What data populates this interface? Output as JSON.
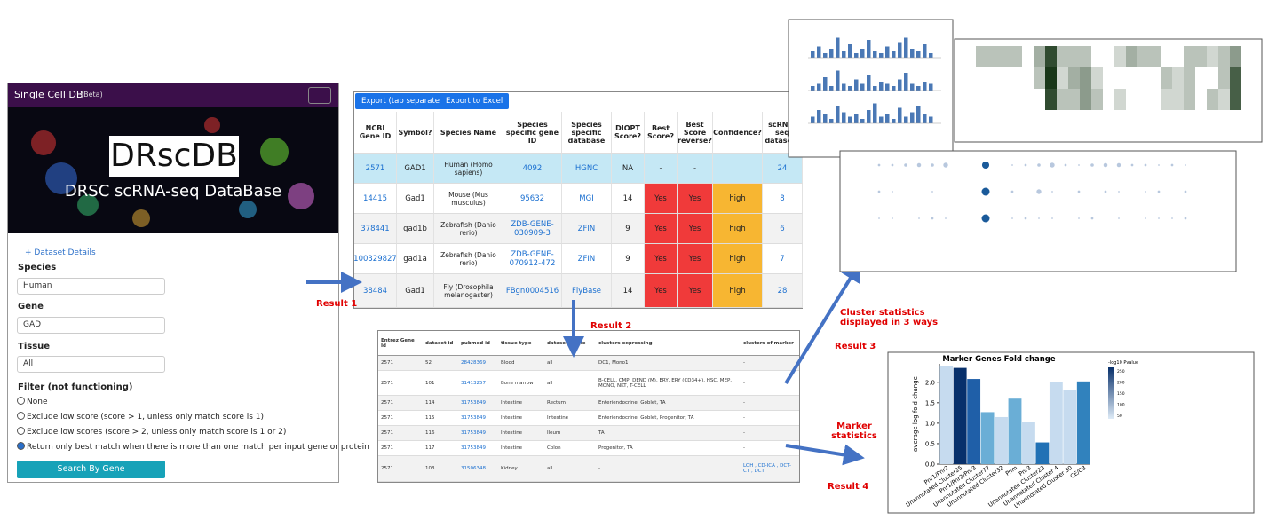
{
  "app": {
    "brand": "Single Cell DB",
    "beta": "(Beta)",
    "logo": "DRscDB",
    "subtitle": "DRSC scRNA-seq DataBase",
    "dataset_details": "+ Dataset Details",
    "species_label": "Species",
    "species": "Human",
    "gene_label": "Gene",
    "gene": "GAD",
    "tissue_label": "Tissue",
    "tissue": "All",
    "filter_label": "Filter (not functioning)",
    "filters": [
      "None",
      "Exclude low score (score > 1, unless only match score is 1)",
      "Exclude low scores (score > 2, unless only match score is 1 or 2)",
      "Return only best match when there is more than one match per input gene or protein"
    ],
    "button": "Search By Gene"
  },
  "orthologs": {
    "buttons": [
      "Export (tab separated)",
      "Export to Excel"
    ],
    "columns": [
      "NCBI Gene ID",
      "Symbol?",
      "Species Name",
      "Species specific gene ID",
      "Species specific database",
      "DIOPT Score?",
      "Best Score?",
      "Best Score reverse?",
      "Confidence?",
      "scRNA-seq datasets"
    ],
    "rows": [
      [
        "2571",
        "GAD1",
        "Human (Homo sapiens)",
        "4092",
        "HGNC",
        "NA",
        "-",
        "-",
        null,
        24
      ],
      [
        "14415",
        "Gad1",
        "Mouse (Mus musculus)",
        "95632",
        "MGI",
        14,
        "Yes",
        "Yes",
        "high",
        8
      ],
      [
        "378441",
        "gad1b",
        "Zebrafish (Danio rerio)",
        "ZDB-GENE-030909-3",
        "ZFIN",
        9,
        "Yes",
        "Yes",
        "high",
        6
      ],
      [
        "100329827",
        "gad1a",
        "Zebrafish (Danio rerio)",
        "ZDB-GENE-070912-472",
        "ZFIN",
        9,
        "Yes",
        "Yes",
        "high",
        7
      ],
      [
        "38484",
        "Gad1",
        "Fly (Drosophila melanogaster)",
        "FBgn0004516",
        "FlyBase",
        14,
        "Yes",
        "Yes",
        "high",
        28
      ]
    ]
  },
  "datasets": {
    "columns": [
      "Entrez Gene Id",
      "dataset id",
      "pubmed id",
      "tissue type",
      "dataset_name",
      "clusters expressing",
      "clusters of marker"
    ],
    "rows": [
      [
        "2571",
        52,
        "28428369",
        "Blood",
        "all",
        "DC1, Mono1",
        "-"
      ],
      [
        "2571",
        101,
        "31413257",
        "Bone marrow",
        "all",
        "B-CELL, CMP, DEND (M), ERY, ERY (CD34+), HSC, MEP, MONO, NKT, T-CELL",
        "-"
      ],
      [
        "2571",
        114,
        "31753849",
        "Intestine",
        "Rectum",
        "Enteriendocrine, Goblet, TA",
        "-"
      ],
      [
        "2571",
        115,
        "31753849",
        "Intestine",
        "Intestine",
        "Enteriendocrine, Goblet, Progenitor, TA",
        "-"
      ],
      [
        "2571",
        116,
        "31753849",
        "Intestine",
        "Ileum",
        "TA",
        "-"
      ],
      [
        "2571",
        117,
        "31753849",
        "Intestine",
        "Colon",
        "Progenitor, TA",
        "-"
      ],
      [
        "2571",
        103,
        "31506348",
        "Kidney",
        "all",
        "-",
        "LOH , CD-ICA , DCT-CT , DCT"
      ]
    ]
  },
  "annotations": {
    "result1": "Result 1",
    "result2": "Result 2",
    "cluster": "Cluster statistics displayed in 3 ways",
    "result3": "Result 3",
    "marker": "Marker statistics",
    "result4": "Result 4"
  },
  "chart_data": {
    "type": "bar",
    "title": "Marker Genes Fold change",
    "ylabel": "average log fold change",
    "categories": [
      "Pnr1/Pnr2",
      "Unannotated Cluster25",
      "Pnr1/Pnr2/Pnr3",
      "Unannotated Cluster77",
      "Unannotated Cluster32",
      "Pnm",
      "Pnr3",
      "Unannotated Cluster23",
      "Unannotated Cluster 4",
      "Unannotated Cluster 30",
      "CE/C3"
    ],
    "values": [
      2.4,
      2.35,
      2.08,
      1.27,
      1.15,
      1.6,
      1.03,
      0.53,
      2.0,
      1.82,
      2.02
    ],
    "colors": [
      "#c6dbef",
      "#08306b",
      "#1f5fa8",
      "#6aaed6",
      "#c6dbef",
      "#6aaed6",
      "#c6dbef",
      "#2171b5",
      "#c6dbef",
      "#c6dbef",
      "#3182bd"
    ],
    "ylim": [
      0,
      2.45
    ],
    "yticks": [
      {
        "value": 0,
        "label": "0.0"
      },
      0.5,
      {
        "value": 1,
        "label": "1.0"
      },
      1.5,
      {
        "value": 2,
        "label": "2.0"
      }
    ],
    "colorbar": {
      "label": "-log10 Pvalue",
      "ticks": [
        50,
        100,
        150,
        200,
        250
      ]
    }
  },
  "thumbnails": {
    "bars": [
      [
        0.3,
        0.5,
        0.2,
        0.4,
        0.9,
        0.3,
        0.6,
        0.2,
        0.4,
        0.8,
        0.3,
        0.2,
        0.5,
        0.3,
        0.7,
        0.9,
        0.4,
        0.3,
        0.6,
        0.2
      ],
      [
        0.2,
        0.3,
        0.6,
        0.2,
        0.9,
        0.3,
        0.2,
        0.5,
        0.3,
        0.7,
        0.2,
        0.4,
        0.3,
        0.2,
        0.5,
        0.8,
        0.3,
        0.2,
        0.4,
        0.3
      ],
      [
        0.3,
        0.6,
        0.4,
        0.2,
        0.8,
        0.5,
        0.3,
        0.4,
        0.2,
        0.6,
        0.9,
        0.3,
        0.4,
        0.2,
        0.7,
        0.3,
        0.5,
        0.8,
        0.4,
        0.3
      ]
    ],
    "heatmap": [
      [
        0,
        0.3,
        0.3,
        0.3,
        0.3,
        0,
        0.4,
        0.9,
        0.3,
        0.3,
        0.3,
        0,
        0,
        0.2,
        0.4,
        0.3,
        0.3,
        0,
        0,
        0.3,
        0.3,
        0.2,
        0.3,
        0.5
      ],
      [
        0,
        0,
        0,
        0,
        0,
        0,
        0.3,
        1,
        0.2,
        0.4,
        0.5,
        0.2,
        0,
        0,
        0,
        0,
        0,
        0.3,
        0.2,
        0.3,
        0,
        0,
        0.3,
        0.8
      ],
      [
        0,
        0,
        0,
        0,
        0,
        0,
        0,
        0.9,
        0.3,
        0.3,
        0.5,
        0.3,
        0,
        0.2,
        0,
        0,
        0,
        0.2,
        0.2,
        0.3,
        0,
        0.3,
        0.2,
        0.8
      ]
    ],
    "dots": [
      [
        0.3,
        0.3,
        0.4,
        0.5,
        0.4,
        0.6,
        0,
        0,
        0.9,
        0,
        0.2,
        0.3,
        0.4,
        0.6,
        0.3,
        0.2,
        0.4,
        0.5,
        0.5,
        0.3,
        0.3,
        0.2,
        0.3,
        0.2
      ],
      [
        0.3,
        0.2,
        0,
        0,
        0.2,
        0,
        0,
        0,
        1,
        0,
        0.3,
        0,
        0.6,
        0.2,
        0,
        0.3,
        0,
        0.3,
        0.2,
        0,
        0.2,
        0.3,
        0,
        0.3
      ],
      [
        0.2,
        0.2,
        0,
        0.2,
        0.3,
        0.2,
        0,
        0,
        1,
        0,
        0.2,
        0.3,
        0.2,
        0.2,
        0,
        0.2,
        0.3,
        0,
        0.2,
        0,
        0.2,
        0.2,
        0.2,
        0.3
      ]
    ]
  }
}
